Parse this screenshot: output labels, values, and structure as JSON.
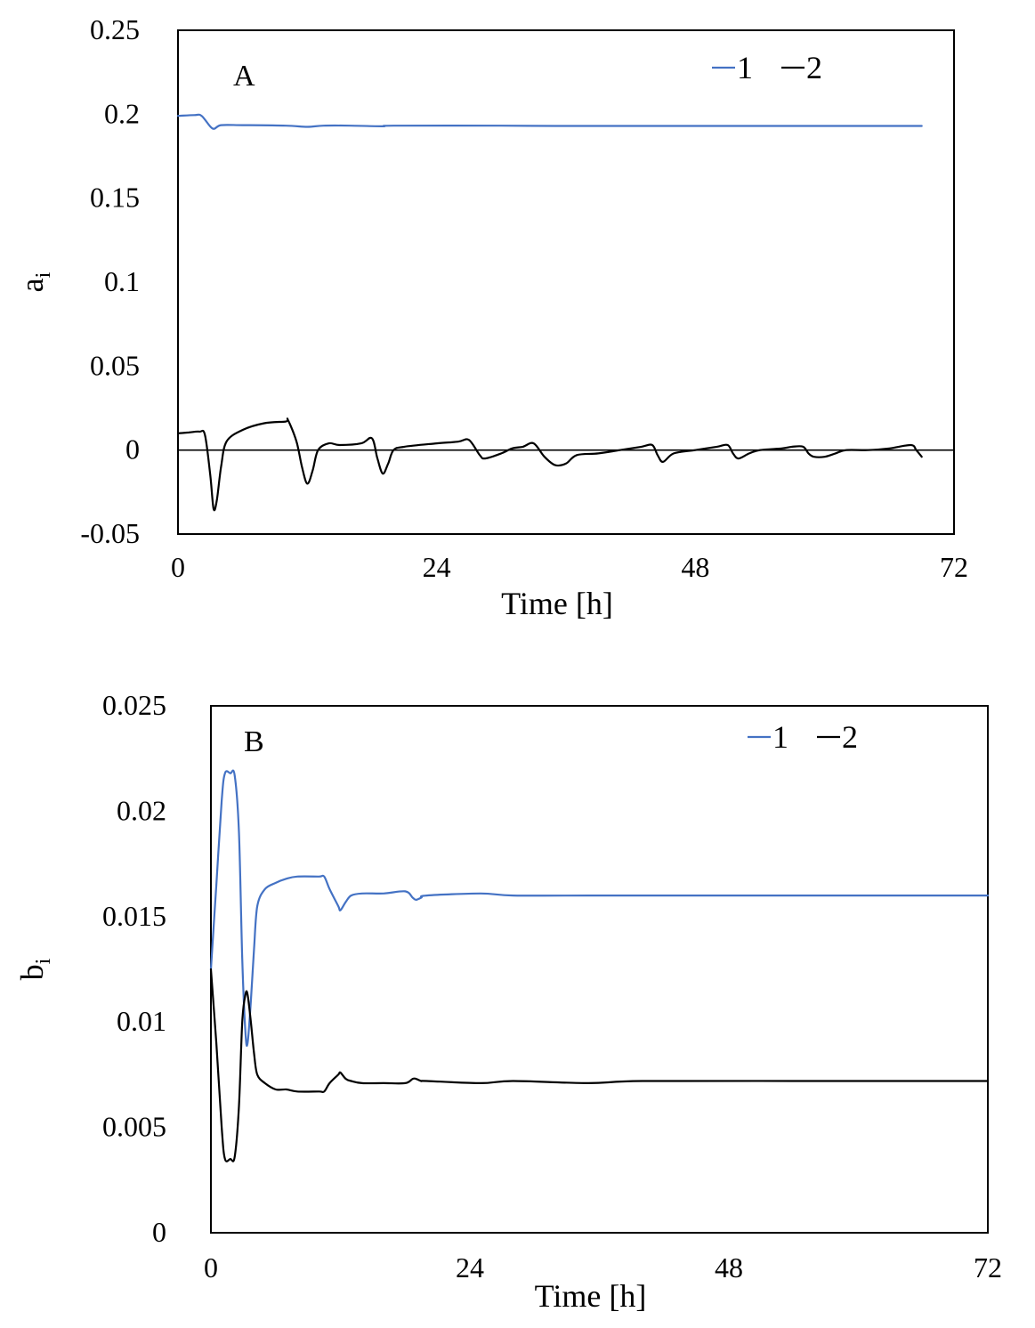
{
  "chart_data": [
    {
      "type": "line",
      "panel_label": "A",
      "ylabel": "a",
      "ylabel_sub": "i",
      "xlabel": "Time [h]",
      "xlim": [
        0,
        72
      ],
      "ylim": [
        -0.05,
        0.25
      ],
      "xticks": [
        0,
        24,
        48,
        72
      ],
      "yticks": [
        -0.05,
        0,
        0.05,
        0.1,
        0.15,
        0.2,
        0.25
      ],
      "xtick_labels": [
        "0",
        "24",
        "48",
        "72"
      ],
      "ytick_labels": [
        "-0.05",
        "0",
        "0.05",
        "0.1",
        "0.15",
        "0.2",
        "0.25"
      ],
      "zero_line": true,
      "grid": false,
      "legend_position": "top-right",
      "series": [
        {
          "name": "1",
          "color": "#4472c4",
          "points": [
            [
              0,
              0.199
            ],
            [
              1.5,
              0.1995
            ],
            [
              2.2,
              0.199
            ],
            [
              3.2,
              0.1915
            ],
            [
              4,
              0.1935
            ],
            [
              6,
              0.1935
            ],
            [
              10,
              0.1932
            ],
            [
              12,
              0.1925
            ],
            [
              13.5,
              0.1932
            ],
            [
              16,
              0.1932
            ],
            [
              19,
              0.1928
            ],
            [
              20,
              0.1932
            ],
            [
              30,
              0.1932
            ],
            [
              35,
              0.193
            ],
            [
              45,
              0.193
            ],
            [
              55,
              0.193
            ],
            [
              69,
              0.193
            ]
          ]
        },
        {
          "name": "2",
          "color": "#000000",
          "points": [
            [
              0,
              0.01
            ],
            [
              1,
              0.0105
            ],
            [
              2,
              0.011
            ],
            [
              2.5,
              0.009
            ],
            [
              3,
              -0.015
            ],
            [
              3.3,
              -0.035
            ],
            [
              3.6,
              -0.03
            ],
            [
              4,
              -0.01
            ],
            [
              4.5,
              0.005
            ],
            [
              6,
              0.012
            ],
            [
              8,
              0.016
            ],
            [
              10,
              0.017
            ],
            [
              10.2,
              0.018
            ],
            [
              11,
              0.005
            ],
            [
              11.5,
              -0.01
            ],
            [
              12,
              -0.02
            ],
            [
              12.5,
              -0.012
            ],
            [
              13,
              0.0
            ],
            [
              14,
              0.004
            ],
            [
              15,
              0.003
            ],
            [
              17,
              0.004
            ],
            [
              18,
              0.007
            ],
            [
              18.5,
              -0.005
            ],
            [
              19,
              -0.014
            ],
            [
              19.5,
              -0.008
            ],
            [
              20,
              0.0
            ],
            [
              21,
              0.002
            ],
            [
              24,
              0.004
            ],
            [
              26,
              0.005
            ],
            [
              27,
              0.006
            ],
            [
              28,
              -0.003
            ],
            [
              28.5,
              -0.005
            ],
            [
              30,
              -0.002
            ],
            [
              31,
              0.001
            ],
            [
              32,
              0.002
            ],
            [
              33,
              0.004
            ],
            [
              34,
              -0.004
            ],
            [
              35,
              -0.009
            ],
            [
              36,
              -0.008
            ],
            [
              37,
              -0.003
            ],
            [
              39,
              -0.002
            ],
            [
              41,
              0.0
            ],
            [
              43,
              0.002
            ],
            [
              44,
              0.003
            ],
            [
              44.5,
              -0.003
            ],
            [
              45,
              -0.007
            ],
            [
              46,
              -0.002
            ],
            [
              48,
              0.0
            ],
            [
              50,
              0.002
            ],
            [
              51,
              0.003
            ],
            [
              51.5,
              -0.002
            ],
            [
              52,
              -0.005
            ],
            [
              53,
              -0.002
            ],
            [
              54,
              0.0
            ],
            [
              56,
              0.001
            ],
            [
              57,
              0.002
            ],
            [
              58,
              0.002
            ],
            [
              58.5,
              -0.002
            ],
            [
              59,
              -0.004
            ],
            [
              60,
              -0.004
            ],
            [
              61,
              -0.002
            ],
            [
              62,
              0.0
            ],
            [
              64,
              0.0
            ],
            [
              66,
              0.001
            ],
            [
              68,
              0.003
            ],
            [
              68.5,
              0.0
            ],
            [
              69,
              -0.004
            ]
          ]
        }
      ]
    },
    {
      "type": "line",
      "panel_label": "B",
      "ylabel": "b",
      "ylabel_sub": "i",
      "xlabel": "Time [h]",
      "xlim": [
        0,
        72
      ],
      "ylim": [
        0,
        0.025
      ],
      "xticks": [
        0,
        24,
        48,
        72
      ],
      "yticks": [
        0,
        0.005,
        0.01,
        0.015,
        0.02,
        0.025
      ],
      "xtick_labels": [
        "0",
        "24",
        "48",
        "72"
      ],
      "ytick_labels": [
        "0",
        "0.005",
        "0.01",
        "0.015",
        "0.02",
        "0.025"
      ],
      "zero_line": false,
      "grid": false,
      "legend_position": "top-right",
      "series": [
        {
          "name": "1",
          "color": "#4472c4",
          "points": [
            [
              0,
              0.0125
            ],
            [
              0.5,
              0.0165
            ],
            [
              1,
              0.0205
            ],
            [
              1.3,
              0.0218
            ],
            [
              1.8,
              0.0218
            ],
            [
              2.2,
              0.0217
            ],
            [
              2.6,
              0.019
            ],
            [
              2.9,
              0.013
            ],
            [
              3.2,
              0.0095
            ],
            [
              3.4,
              0.009
            ],
            [
              3.7,
              0.011
            ],
            [
              4,
              0.0135
            ],
            [
              4.3,
              0.0155
            ],
            [
              5,
              0.0163
            ],
            [
              6,
              0.0166
            ],
            [
              7,
              0.0168
            ],
            [
              8,
              0.0169
            ],
            [
              10,
              0.0169
            ],
            [
              10.5,
              0.0169
            ],
            [
              11,
              0.0163
            ],
            [
              11.8,
              0.0155
            ],
            [
              12,
              0.0153
            ],
            [
              12.5,
              0.0157
            ],
            [
              13,
              0.016
            ],
            [
              14,
              0.0161
            ],
            [
              16,
              0.0161
            ],
            [
              18,
              0.0162
            ],
            [
              18.7,
              0.0159
            ],
            [
              19,
              0.0158
            ],
            [
              19.5,
              0.0159
            ],
            [
              20,
              0.016
            ],
            [
              25,
              0.0161
            ],
            [
              28,
              0.016
            ],
            [
              35,
              0.016
            ],
            [
              40,
              0.016
            ],
            [
              55,
              0.016
            ],
            [
              72,
              0.016
            ]
          ]
        },
        {
          "name": "2",
          "color": "#000000",
          "points": [
            [
              0,
              0.0125
            ],
            [
              0.5,
              0.009
            ],
            [
              1,
              0.005
            ],
            [
              1.3,
              0.0035
            ],
            [
              1.8,
              0.0035
            ],
            [
              2.2,
              0.0036
            ],
            [
              2.6,
              0.006
            ],
            [
              2.9,
              0.01
            ],
            [
              3.2,
              0.0113
            ],
            [
              3.4,
              0.0113
            ],
            [
              3.7,
              0.01
            ],
            [
              4,
              0.0085
            ],
            [
              4.3,
              0.0075
            ],
            [
              5,
              0.0071
            ],
            [
              6,
              0.0068
            ],
            [
              7,
              0.0068
            ],
            [
              8,
              0.0067
            ],
            [
              10,
              0.0067
            ],
            [
              10.5,
              0.0067
            ],
            [
              11,
              0.0071
            ],
            [
              11.8,
              0.0075
            ],
            [
              12,
              0.0076
            ],
            [
              12.5,
              0.0073
            ],
            [
              13,
              0.0072
            ],
            [
              14,
              0.0071
            ],
            [
              16,
              0.0071
            ],
            [
              18,
              0.0071
            ],
            [
              18.7,
              0.0073
            ],
            [
              19,
              0.0073
            ],
            [
              19.5,
              0.0072
            ],
            [
              20,
              0.0072
            ],
            [
              25,
              0.0071
            ],
            [
              28,
              0.0072
            ],
            [
              35,
              0.0071
            ],
            [
              40,
              0.0072
            ],
            [
              55,
              0.0072
            ],
            [
              72,
              0.0072
            ]
          ]
        }
      ]
    }
  ]
}
